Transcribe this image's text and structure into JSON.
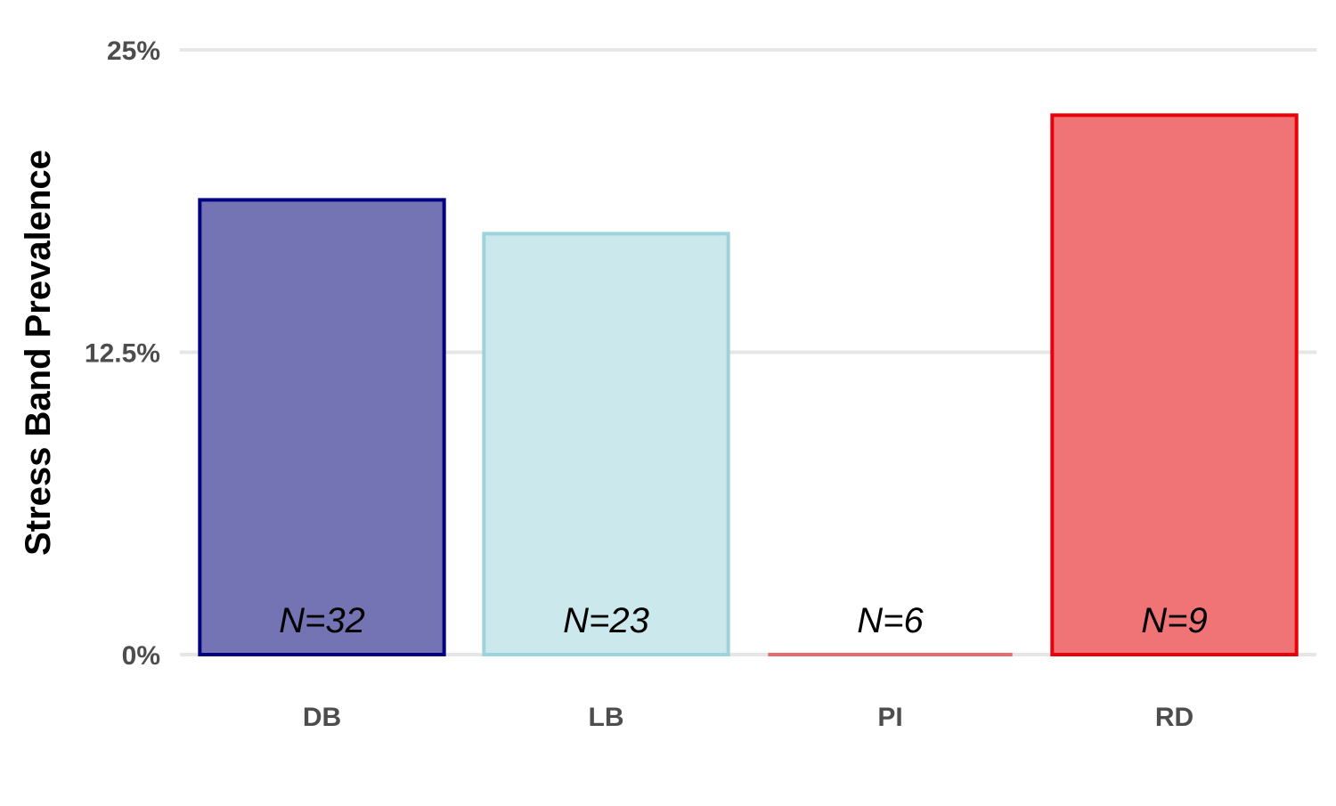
{
  "chart_data": {
    "type": "bar",
    "ylabel": "Stress Band Prevalence",
    "xlabel": "",
    "ylim": [
      0,
      0.25
    ],
    "yticks": [
      0,
      0.125,
      0.25
    ],
    "ytick_labels": [
      "0%",
      "12.5%",
      "25%"
    ],
    "categories": [
      "DB",
      "LB",
      "PI",
      "RD"
    ],
    "values": [
      0.188,
      0.174,
      0.0,
      0.223
    ],
    "bar_labels": [
      "N=32",
      "N=23",
      "N=6",
      "N=9"
    ],
    "fill_colors": [
      "#7474b4",
      "#cbe8ed",
      "#e86a6e",
      "#f07375"
    ],
    "border_colors": [
      "#000080",
      "#9dd4dc",
      "#e86a6e",
      "#e8000b"
    ],
    "grid": "horizontal",
    "legend": "none"
  }
}
